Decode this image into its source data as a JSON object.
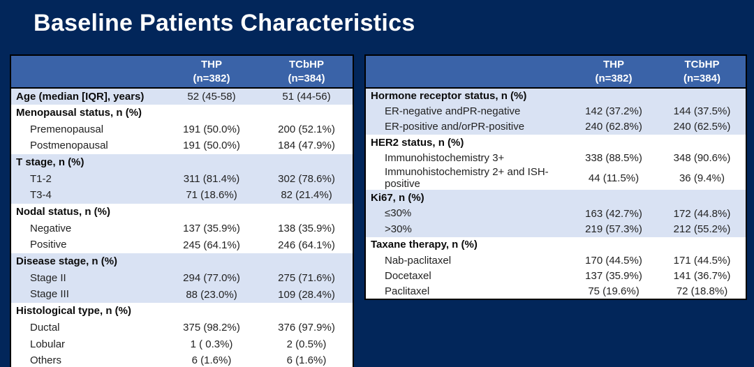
{
  "page": {
    "title": "Baseline Patients Characteristics",
    "background_color": "#02265A",
    "header_bg_color": "#3A63A8",
    "band_bg_color": "#D9E2F3"
  },
  "column_headers": {
    "thp_line1": "THP",
    "thp_line2": "(n=382)",
    "tcbhp_line1": "TCbHP",
    "tcbhp_line2": "(n=384)"
  },
  "tables": {
    "left": {
      "rows": [
        {
          "label": "Age (median [IQR], years)",
          "thp": "52 (45-58)",
          "tcbhp": "51 (44-56)",
          "style": "category",
          "band": true
        },
        {
          "label": "Menopausal status, n (%)",
          "thp": "",
          "tcbhp": "",
          "style": "category",
          "band": false
        },
        {
          "label": "Premenopausal",
          "thp": "191 (50.0%)",
          "tcbhp": "200 (52.1%)",
          "style": "sub",
          "band": false
        },
        {
          "label": "Postmenopausal",
          "thp": "191 (50.0%)",
          "tcbhp": "184 (47.9%)",
          "style": "sub",
          "band": false
        },
        {
          "label": "T stage, n (%)",
          "thp": "",
          "tcbhp": "",
          "style": "category",
          "band": true
        },
        {
          "label": "T1-2",
          "thp": "311 (81.4%)",
          "tcbhp": "302 (78.6%)",
          "style": "sub",
          "band": true
        },
        {
          "label": "T3-4",
          "thp": "71 (18.6%)",
          "tcbhp": "82 (21.4%)",
          "style": "sub",
          "band": true
        },
        {
          "label": "Nodal status, n (%)",
          "thp": "",
          "tcbhp": "",
          "style": "category",
          "band": false
        },
        {
          "label": "Negative",
          "thp": "137 (35.9%)",
          "tcbhp": "138 (35.9%)",
          "style": "sub",
          "band": false
        },
        {
          "label": "Positive",
          "thp": "245 (64.1%)",
          "tcbhp": "246 (64.1%)",
          "style": "sub",
          "band": false
        },
        {
          "label": "Disease stage, n (%)",
          "thp": "",
          "tcbhp": "",
          "style": "category",
          "band": true
        },
        {
          "label": "Stage II",
          "thp": "294 (77.0%)",
          "tcbhp": "275 (71.6%)",
          "style": "sub",
          "band": true
        },
        {
          "label": "Stage III",
          "thp": "88 (23.0%)",
          "tcbhp": "109 (28.4%)",
          "style": "sub",
          "band": true
        },
        {
          "label": "Histological type, n (%)",
          "thp": "",
          "tcbhp": "",
          "style": "category",
          "band": false
        },
        {
          "label": "Ductal",
          "thp": "375 (98.2%)",
          "tcbhp": "376 (97.9%)",
          "style": "sub",
          "band": false
        },
        {
          "label": "Lobular",
          "thp": "1 ( 0.3%)",
          "tcbhp": "2 (0.5%)",
          "style": "sub",
          "band": false
        },
        {
          "label": "Others",
          "thp": "6 (1.6%)",
          "tcbhp": "6 (1.6%)",
          "style": "sub",
          "band": false
        }
      ]
    },
    "right": {
      "rows": [
        {
          "label": "Hormone receptor status, n (%)",
          "thp": "",
          "tcbhp": "",
          "style": "category",
          "band": true
        },
        {
          "label": "ER-negative andPR-negative",
          "thp": "142 (37.2%)",
          "tcbhp": "144 (37.5%)",
          "style": "sub",
          "band": true
        },
        {
          "label": "ER-positive and/orPR-positive",
          "thp": "240 (62.8%)",
          "tcbhp": "240 (62.5%)",
          "style": "sub",
          "band": true
        },
        {
          "label": "HER2 status, n (%)",
          "thp": "",
          "tcbhp": "",
          "style": "category",
          "band": false
        },
        {
          "label": "Immunohistochemistry 3+",
          "thp": "338 (88.5%)",
          "tcbhp": "348 (90.6%)",
          "style": "sub",
          "band": false
        },
        {
          "label": "Immunohistochemistry 2+ and ISH-positive",
          "thp": "44 (11.5%)",
          "tcbhp": "36 (9.4%)",
          "style": "sub",
          "band": false
        },
        {
          "label": "Ki67, n (%)",
          "thp": "",
          "tcbhp": "",
          "style": "category",
          "band": true
        },
        {
          "label": "≤30%",
          "thp": "163 (42.7%)",
          "tcbhp": "172 (44.8%)",
          "style": "sub",
          "band": true
        },
        {
          "label": ">30%",
          "thp": "219 (57.3%)",
          "tcbhp": "212 (55.2%)",
          "style": "sub",
          "band": true
        },
        {
          "label": "Taxane therapy, n (%)",
          "thp": "",
          "tcbhp": "",
          "style": "category",
          "band": false
        },
        {
          "label": "Nab-paclitaxel",
          "thp": "170 (44.5%)",
          "tcbhp": "171 (44.5%)",
          "style": "sub",
          "band": false
        },
        {
          "label": "Docetaxel",
          "thp": "137 (35.9%)",
          "tcbhp": "141 (36.7%)",
          "style": "sub",
          "band": false
        },
        {
          "label": "Paclitaxel",
          "thp": "75 (19.6%)",
          "tcbhp": "72 (18.8%)",
          "style": "sub",
          "band": false
        }
      ]
    }
  }
}
